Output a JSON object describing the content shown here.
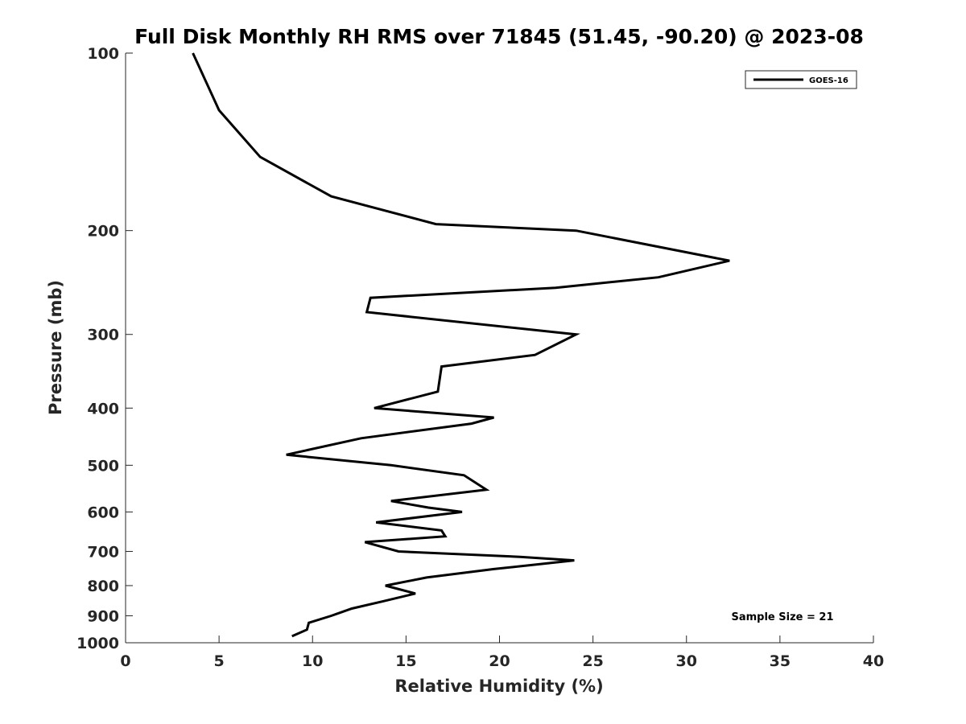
{
  "chart_data": {
    "type": "line",
    "title": "Full Disk Monthly RH RMS over 71845 (51.45, -90.20) @ 2023-08",
    "xlabel": "Relative Humidity (%)",
    "ylabel": "Pressure (mb)",
    "xlim": [
      0,
      40
    ],
    "ylim": [
      1000,
      100
    ],
    "yscale": "log",
    "x_ticks": [
      0,
      5,
      10,
      15,
      20,
      25,
      30,
      35,
      40
    ],
    "y_ticks": [
      100,
      200,
      300,
      400,
      500,
      600,
      700,
      800,
      900,
      1000
    ],
    "legend_position": "top-right",
    "annotation": "Sample Size = 21",
    "series": [
      {
        "name": "GOES-16",
        "color": "#000000",
        "points": [
          [
            3.6,
            100
          ],
          [
            5.0,
            125
          ],
          [
            7.2,
            150
          ],
          [
            11.0,
            175
          ],
          [
            16.6,
            195
          ],
          [
            24.1,
            200
          ],
          [
            32.3,
            225
          ],
          [
            28.5,
            240
          ],
          [
            23.0,
            250
          ],
          [
            13.1,
            260
          ],
          [
            12.9,
            275
          ],
          [
            24.1,
            300
          ],
          [
            21.9,
            325
          ],
          [
            16.9,
            340
          ],
          [
            16.7,
            375
          ],
          [
            13.3,
            400
          ],
          [
            19.7,
            415
          ],
          [
            18.5,
            425
          ],
          [
            12.6,
            450
          ],
          [
            8.6,
            480
          ],
          [
            14.2,
            500
          ],
          [
            18.1,
            520
          ],
          [
            19.3,
            550
          ],
          [
            14.2,
            575
          ],
          [
            16.2,
            590
          ],
          [
            18.0,
            600
          ],
          [
            13.4,
            625
          ],
          [
            16.9,
            645
          ],
          [
            17.1,
            660
          ],
          [
            12.8,
            675
          ],
          [
            14.6,
            700
          ],
          [
            21.1,
            715
          ],
          [
            24.0,
            725
          ],
          [
            19.7,
            750
          ],
          [
            16.1,
            775
          ],
          [
            13.9,
            800
          ],
          [
            15.5,
            825
          ],
          [
            13.8,
            850
          ],
          [
            12.1,
            875
          ],
          [
            11.0,
            900
          ],
          [
            9.8,
            925
          ],
          [
            9.7,
            950
          ],
          [
            8.9,
            975
          ]
        ]
      }
    ]
  }
}
